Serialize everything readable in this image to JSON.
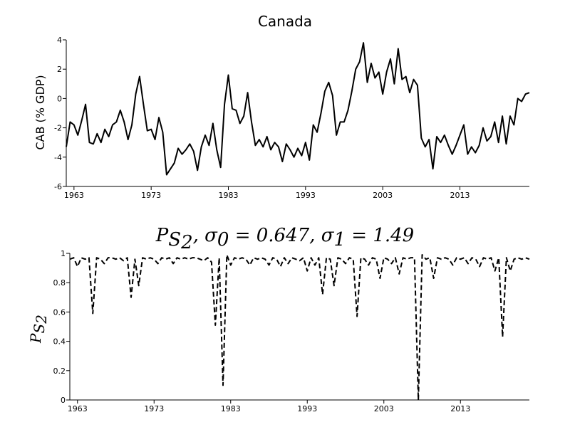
{
  "chart_data": [
    {
      "type": "line",
      "title": "Canada",
      "xlabel": "",
      "ylabel": "CAB (% GDP)",
      "xlim": [
        1962,
        2022
      ],
      "ylim": [
        -6,
        4
      ],
      "xticks": [
        1963,
        1973,
        1983,
        1993,
        2003,
        2013
      ],
      "yticks": [
        -6,
        -4,
        -2,
        0,
        2,
        4
      ],
      "grid": false,
      "series": [
        {
          "x": [
            1962.0,
            1962.5,
            1963.0,
            1963.5,
            1964.0,
            1964.5,
            1965.0,
            1965.5,
            1966.0,
            1966.5,
            1967.0,
            1967.5,
            1968.0,
            1968.5,
            1969.0,
            1969.5,
            1970.0,
            1970.5,
            1971.0,
            1971.5,
            1972.0,
            1972.5,
            1973.0,
            1973.5,
            1974.0,
            1974.5,
            1975.0,
            1975.5,
            1976.0,
            1976.5,
            1977.0,
            1977.5,
            1978.0,
            1978.5,
            1979.0,
            1979.5,
            1980.0,
            1980.5,
            1981.0,
            1981.5,
            1982.0,
            1982.5,
            1983.0,
            1983.5,
            1984.0,
            1984.5,
            1985.0,
            1985.5,
            1986.0,
            1986.5,
            1987.0,
            1987.5,
            1988.0,
            1988.5,
            1989.0,
            1989.5,
            1990.0,
            1990.5,
            1991.0,
            1991.5,
            1992.0,
            1992.5,
            1993.0,
            1993.5,
            1994.0,
            1994.5,
            1995.0,
            1995.5,
            1996.0,
            1996.5,
            1997.0,
            1997.5,
            1998.0,
            1998.5,
            1999.0,
            1999.5,
            2000.0,
            2000.5,
            2001.0,
            2001.5,
            2002.0,
            2002.5,
            2003.0,
            2003.5,
            2004.0,
            2004.5,
            2005.0,
            2005.5,
            2006.0,
            2006.5,
            2007.0,
            2007.5,
            2008.0,
            2008.5,
            2009.0,
            2009.5,
            2010.0,
            2010.5,
            2011.0,
            2011.5,
            2012.0,
            2012.5,
            2013.0,
            2013.5,
            2014.0,
            2014.5,
            2015.0,
            2015.5,
            2016.0,
            2016.5,
            2017.0,
            2017.5,
            2018.0,
            2018.5,
            2019.0,
            2019.5,
            2020.0,
            2020.5,
            2021.0,
            2021.5,
            2022.0
          ],
          "values": [
            -3.3,
            -1.6,
            -1.8,
            -2.5,
            -1.5,
            -0.4,
            -3.0,
            -3.1,
            -2.4,
            -3.0,
            -2.1,
            -2.6,
            -1.8,
            -1.6,
            -0.8,
            -1.6,
            -2.8,
            -1.8,
            0.3,
            1.5,
            -0.4,
            -2.2,
            -2.1,
            -2.8,
            -1.3,
            -2.3,
            -5.2,
            -4.8,
            -4.4,
            -3.4,
            -3.8,
            -3.5,
            -3.1,
            -3.6,
            -4.9,
            -3.3,
            -2.5,
            -3.2,
            -1.7,
            -3.5,
            -4.7,
            -0.4,
            1.6,
            -0.7,
            -0.8,
            -1.7,
            -1.2,
            0.4,
            -1.6,
            -3.2,
            -2.8,
            -3.3,
            -2.6,
            -3.5,
            -3.0,
            -3.3,
            -4.3,
            -3.1,
            -3.5,
            -4.0,
            -3.4,
            -3.9,
            -3.0,
            -4.2,
            -1.8,
            -2.3,
            -1.0,
            0.5,
            1.1,
            0.2,
            -2.5,
            -1.6,
            -1.6,
            -0.8,
            0.5,
            2.0,
            2.5,
            3.8,
            1.1,
            2.4,
            1.4,
            1.8,
            0.3,
            1.8,
            2.7,
            1.0,
            3.4,
            1.3,
            1.5,
            0.4,
            1.3,
            0.9,
            -2.7,
            -3.3,
            -2.8,
            -4.8,
            -2.6,
            -3.0,
            -2.5,
            -3.2,
            -3.8,
            -3.2,
            -2.5,
            -1.8,
            -3.8,
            -3.3,
            -3.7,
            -3.2,
            -2.0,
            -2.9,
            -2.6,
            -1.6,
            -3.0,
            -1.2,
            -3.1,
            -1.2,
            -1.8,
            0.0,
            -0.2,
            0.3,
            0.4
          ]
        }
      ]
    },
    {
      "type": "line",
      "title": "P_{S_2}, σ0 = 0.647, σ1 = 1.49",
      "xlabel": "",
      "ylabel": "P_{S_2}",
      "xlim": [
        1962,
        2022
      ],
      "ylim": [
        0,
        1
      ],
      "xticks": [
        1963,
        1973,
        1983,
        1993,
        2003,
        2013
      ],
      "yticks": [
        0,
        0.2,
        0.4,
        0.6,
        0.8,
        1
      ],
      "grid": false,
      "series": [
        {
          "x": [
            1962.0,
            1962.5,
            1963.0,
            1963.5,
            1964.0,
            1964.5,
            1965.0,
            1965.5,
            1966.0,
            1966.5,
            1967.0,
            1967.5,
            1968.0,
            1968.5,
            1969.0,
            1969.5,
            1970.0,
            1970.5,
            1971.0,
            1971.5,
            1972.0,
            1972.5,
            1973.0,
            1973.5,
            1974.0,
            1974.5,
            1975.0,
            1975.5,
            1976.0,
            1976.5,
            1977.0,
            1977.5,
            1978.0,
            1978.5,
            1979.0,
            1979.5,
            1980.0,
            1980.5,
            1981.0,
            1981.5,
            1982.0,
            1982.5,
            1983.0,
            1983.5,
            1984.0,
            1984.5,
            1985.0,
            1985.5,
            1986.0,
            1986.5,
            1987.0,
            1987.5,
            1988.0,
            1988.5,
            1989.0,
            1989.5,
            1990.0,
            1990.5,
            1991.0,
            1991.5,
            1992.0,
            1992.5,
            1993.0,
            1993.5,
            1994.0,
            1994.5,
            1995.0,
            1995.5,
            1996.0,
            1996.5,
            1997.0,
            1997.5,
            1998.0,
            1998.5,
            1999.0,
            1999.5,
            2000.0,
            2000.5,
            2001.0,
            2001.5,
            2002.0,
            2002.5,
            2003.0,
            2003.5,
            2004.0,
            2004.5,
            2005.0,
            2005.5,
            2006.0,
            2006.5,
            2007.0,
            2007.5,
            2008.0,
            2008.5,
            2009.0,
            2009.5,
            2010.0,
            2010.5,
            2011.0,
            2011.5,
            2012.0,
            2012.5,
            2013.0,
            2013.5,
            2014.0,
            2014.5,
            2015.0,
            2015.5,
            2016.0,
            2016.5,
            2017.0,
            2017.5,
            2018.0,
            2018.5,
            2019.0,
            2019.5,
            2020.0,
            2020.5,
            2021.0,
            2021.5,
            2022.0
          ],
          "values": [
            0.96,
            0.97,
            0.91,
            0.97,
            0.96,
            0.97,
            0.59,
            0.97,
            0.96,
            0.93,
            0.97,
            0.97,
            0.96,
            0.97,
            0.95,
            0.97,
            0.7,
            0.96,
            0.78,
            0.97,
            0.96,
            0.97,
            0.96,
            0.93,
            0.97,
            0.96,
            0.97,
            0.93,
            0.97,
            0.96,
            0.97,
            0.96,
            0.97,
            0.97,
            0.96,
            0.95,
            0.97,
            0.94,
            0.51,
            0.97,
            0.1,
            0.99,
            0.92,
            0.97,
            0.96,
            0.97,
            0.96,
            0.92,
            0.97,
            0.96,
            0.97,
            0.96,
            0.92,
            0.97,
            0.96,
            0.91,
            0.97,
            0.93,
            0.97,
            0.96,
            0.95,
            0.97,
            0.88,
            0.97,
            0.92,
            0.97,
            0.72,
            0.97,
            0.96,
            0.78,
            0.97,
            0.96,
            0.93,
            0.97,
            0.96,
            0.57,
            0.97,
            0.96,
            0.92,
            0.97,
            0.96,
            0.83,
            0.97,
            0.96,
            0.93,
            0.97,
            0.86,
            0.97,
            0.96,
            0.97,
            0.97,
            0.0,
            0.99,
            0.96,
            0.97,
            0.83,
            0.97,
            0.96,
            0.97,
            0.96,
            0.92,
            0.97,
            0.96,
            0.97,
            0.93,
            0.97,
            0.96,
            0.91,
            0.97,
            0.96,
            0.97,
            0.88,
            0.97,
            0.43,
            0.97,
            0.88,
            0.96,
            0.97,
            0.96,
            0.97,
            0.96
          ]
        }
      ]
    }
  ]
}
